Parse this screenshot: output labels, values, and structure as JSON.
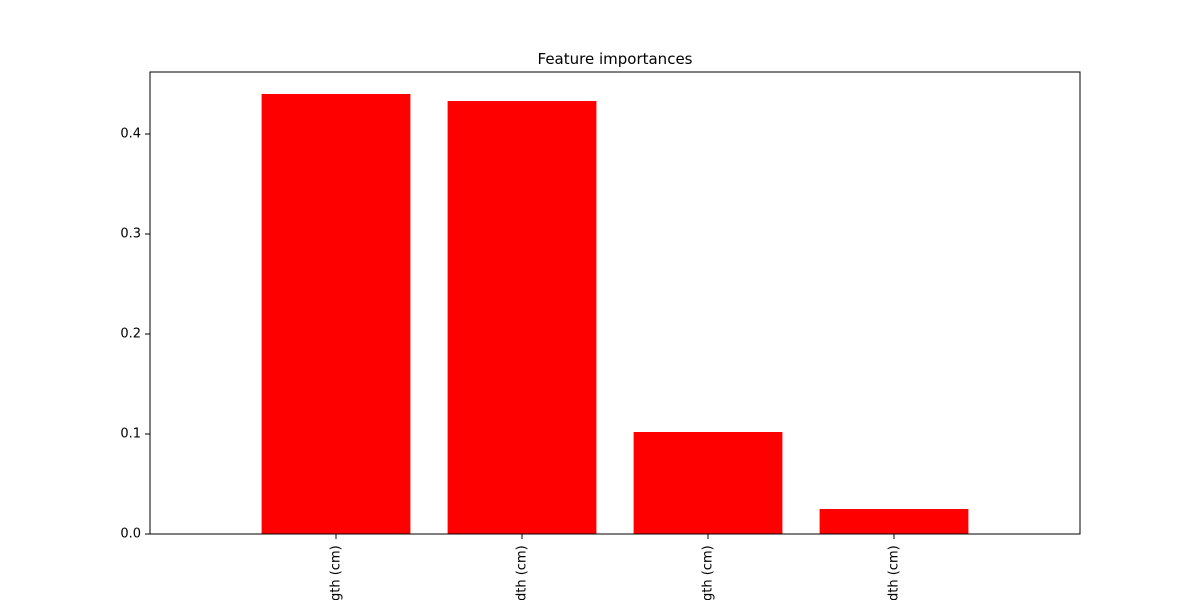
{
  "chart_data": {
    "type": "bar",
    "title": "Feature importances",
    "categories": [
      "gth (cm)",
      "dth (cm)",
      "gth (cm)",
      "dth (cm)"
    ],
    "values": [
      0.44,
      0.433,
      0.102,
      0.025
    ],
    "color": "#ff0000",
    "ylim": [
      0,
      0.462
    ],
    "yticks": [
      {
        "value": 0,
        "label": "0.0"
      },
      {
        "value": 0.1,
        "label": "0.1"
      },
      {
        "value": 0.2,
        "label": "0.2"
      },
      {
        "value": 0.3,
        "label": "0.3"
      },
      {
        "value": 0.4,
        "label": "0.4"
      }
    ]
  }
}
